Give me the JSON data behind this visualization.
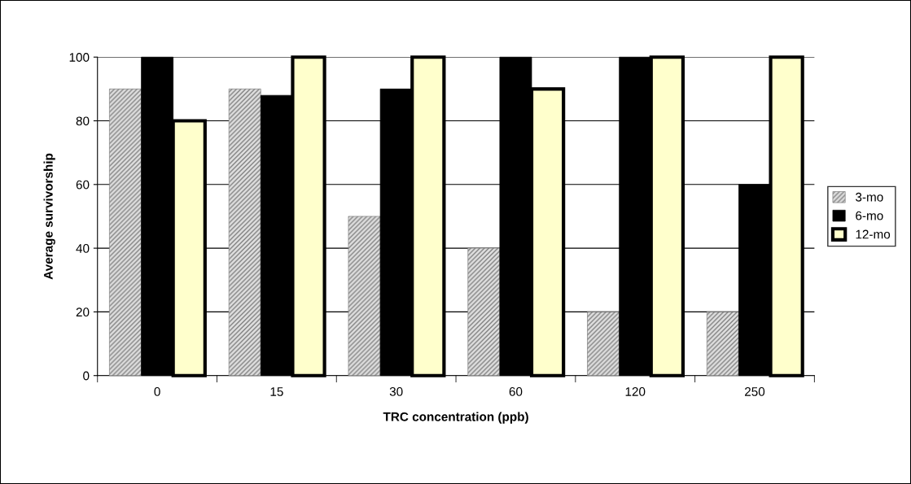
{
  "chart_data": {
    "type": "bar",
    "xlabel": "TRC concentration (ppb)",
    "ylabel": "Average survivorship",
    "categories": [
      "0",
      "15",
      "30",
      "60",
      "120",
      "250"
    ],
    "series": [
      {
        "name": "3-mo",
        "color": "#808080",
        "values": [
          90,
          90,
          50,
          40,
          20,
          20
        ]
      },
      {
        "name": "6-mo",
        "color": "#000000",
        "values": [
          100,
          88,
          90,
          100,
          100,
          60
        ]
      },
      {
        "name": "12-mo",
        "color": "#ffffcc",
        "values": [
          80,
          100,
          100,
          90,
          100,
          100
        ]
      }
    ],
    "ylim": [
      0,
      100
    ],
    "yticks": [
      0,
      20,
      40,
      60,
      80,
      100
    ],
    "grid": "y",
    "legend": "right"
  }
}
